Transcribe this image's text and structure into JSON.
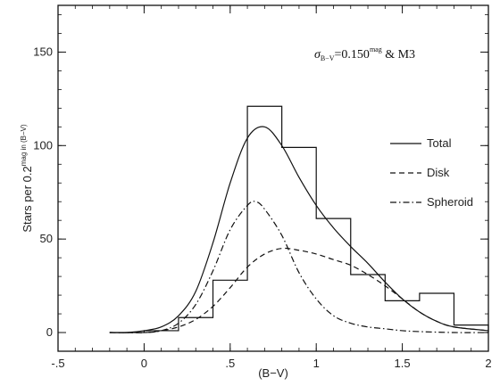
{
  "chart_data": {
    "type": "line",
    "title": "",
    "annotation": {
      "sigma_symbol": "σ",
      "sigma_subscript": "B−V",
      "value_text": "=0.150",
      "value_sup": "mag",
      "suffix_text": " & M3"
    },
    "xlabel": "(B−V)",
    "ylabel": {
      "prefix": "Stars per 0.2",
      "sup": "mag",
      "suffix": " in (B−V)"
    },
    "xlim": [
      -0.5,
      2
    ],
    "ylim": [
      -10,
      175
    ],
    "x_ticks": [
      -0.5,
      0,
      0.5,
      1,
      1.5,
      2
    ],
    "x_tick_labels": [
      "-.5",
      "0",
      ".5",
      "1",
      "1.5",
      "2"
    ],
    "y_ticks": [
      0,
      50,
      100,
      150
    ],
    "y_tick_labels": [
      "0",
      "50",
      "100",
      "150"
    ],
    "grid": false,
    "legend_position": "right",
    "histogram": {
      "edges": [
        -0.2,
        0.0,
        0.2,
        0.4,
        0.6,
        0.8,
        1.0,
        1.2,
        1.4,
        1.6,
        1.8,
        2.0
      ],
      "counts": [
        0,
        1,
        8,
        28,
        121,
        99,
        61,
        31,
        17,
        21,
        4
      ]
    },
    "series": [
      {
        "name": "Total",
        "style": "solid",
        "x": [
          -0.2,
          -0.1,
          0.0,
          0.1,
          0.2,
          0.3,
          0.4,
          0.5,
          0.6,
          0.7,
          0.8,
          0.9,
          1.0,
          1.1,
          1.2,
          1.3,
          1.4,
          1.5,
          1.6,
          1.7,
          1.8,
          2.0
        ],
        "y": [
          0,
          0,
          1,
          3,
          9,
          22,
          48,
          80,
          104,
          110,
          100,
          83,
          68,
          56,
          46,
          37,
          27,
          18,
          11,
          6,
          3,
          1
        ]
      },
      {
        "name": "Disk",
        "style": "dashed",
        "x": [
          -0.2,
          0.0,
          0.1,
          0.2,
          0.3,
          0.4,
          0.5,
          0.6,
          0.7,
          0.8,
          0.9,
          1.0,
          1.1,
          1.2,
          1.3,
          1.4,
          1.5,
          1.6,
          1.7,
          1.8,
          2.0
        ],
        "y": [
          0,
          0,
          1,
          3,
          7,
          14,
          24,
          35,
          42,
          45,
          44,
          42,
          39,
          36,
          31,
          25,
          18,
          11,
          6,
          3,
          1
        ]
      },
      {
        "name": "Spheroid",
        "style": "dashdot",
        "x": [
          -0.2,
          0.0,
          0.1,
          0.2,
          0.3,
          0.4,
          0.5,
          0.6,
          0.65,
          0.7,
          0.8,
          0.9,
          1.0,
          1.1,
          1.2,
          1.3,
          1.4,
          1.5,
          1.6,
          1.8,
          2.0
        ],
        "y": [
          0,
          0,
          1,
          5,
          15,
          33,
          55,
          68,
          70,
          66,
          52,
          32,
          18,
          9,
          5,
          3,
          2,
          1,
          0.5,
          0,
          0
        ]
      }
    ]
  }
}
